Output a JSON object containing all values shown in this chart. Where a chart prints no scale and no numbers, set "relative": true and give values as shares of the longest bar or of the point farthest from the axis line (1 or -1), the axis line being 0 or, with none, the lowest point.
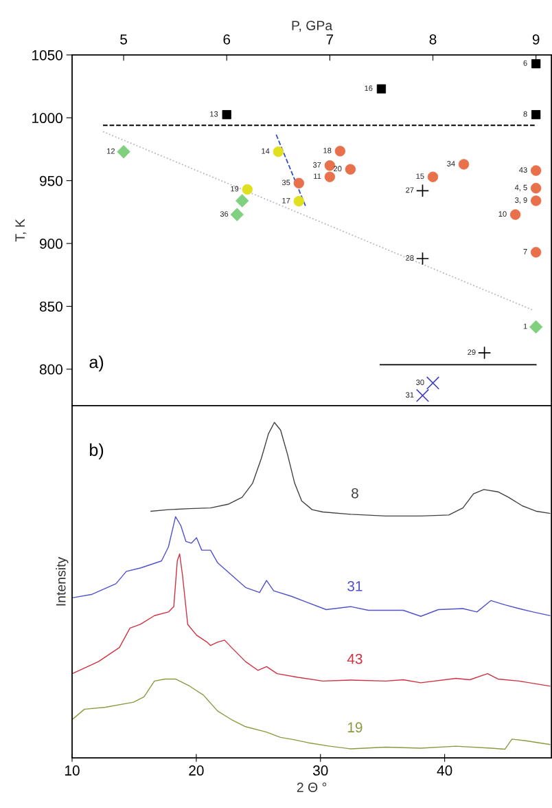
{
  "chart_data": [
    {
      "type": "scatter",
      "xlabel": "P, GPa",
      "ylabel": "T, K",
      "xlim": [
        4.5,
        9.15
      ],
      "ylim": [
        771,
        1050
      ],
      "xticks": [
        5,
        6,
        7,
        8,
        9
      ],
      "yticks": [
        800,
        850,
        900,
        950,
        1000,
        1050
      ],
      "grid": false,
      "legend": false,
      "series": [
        {
          "type": "line",
          "color": "#000000",
          "line_style": "dashed",
          "marker": "none",
          "x": [
            4.8,
            9.0
          ],
          "values": [
            994,
            994
          ]
        },
        {
          "type": "line",
          "color": "#b0b8c4",
          "line_style": "dotted",
          "marker": "none",
          "x": [
            4.8,
            8.97
          ],
          "values": [
            989,
            847
          ]
        },
        {
          "type": "line",
          "color": "#3050c0",
          "line_style": "dashed",
          "marker": "none",
          "x": [
            6.48,
            6.77
          ],
          "values": [
            986.6,
            928.7
          ]
        },
        {
          "type": "line",
          "color": "#000000",
          "line_style": "solid",
          "marker": "none",
          "x": [
            7.49,
            9.0
          ],
          "values": [
            803.5,
            803.5
          ]
        },
        {
          "type": "scatter",
          "color": "#000000",
          "marker": "square",
          "x": [
            6.0,
            7.5,
            9.0,
            9.0
          ],
          "values": [
            1002.5,
            1023,
            1043,
            1002.5
          ]
        },
        {
          "type": "scatter",
          "color": "#e8704a",
          "marker": "circle",
          "x": [
            7.1,
            7.0,
            7.0,
            7.2,
            6.7,
            8.0,
            8.3,
            9.0,
            9.0,
            9.0,
            8.8,
            9.0
          ],
          "values": [
            973.5,
            962,
            953,
            959,
            948,
            953,
            963,
            958,
            944,
            934,
            923,
            893
          ]
        },
        {
          "type": "scatter",
          "color": "#e0e020",
          "marker": "circle",
          "x": [
            6.5,
            6.2,
            6.7
          ],
          "values": [
            973,
            943,
            933.6
          ]
        },
        {
          "type": "scatter",
          "color": "#80d080",
          "marker": "diamond",
          "x": [
            5.0,
            6.1,
            6.15,
            9.0
          ],
          "values": [
            973,
            923,
            934,
            833.6
          ]
        },
        {
          "type": "scatter",
          "color": "#000000",
          "marker": "cross",
          "x": [
            7.9,
            7.9,
            8.5
          ],
          "values": [
            942,
            888,
            813
          ]
        },
        {
          "type": "scatter",
          "color": "#4040c0",
          "marker": "x",
          "x": [
            7.9,
            8.0
          ],
          "values": [
            779,
            789
          ]
        }
      ],
      "annotations": [
        "a)",
        {
          "text": "13",
          "x": 6.0,
          "y": 1002.5
        },
        {
          "text": "16",
          "x": 7.5,
          "y": 1023
        },
        {
          "text": "6",
          "x": 9.0,
          "y": 1043
        },
        {
          "text": "8",
          "x": 9.0,
          "y": 1002.5
        },
        {
          "text": "18",
          "x": 7.1,
          "y": 973.5
        },
        {
          "text": "37",
          "x": 7.0,
          "y": 962
        },
        {
          "text": "11",
          "x": 7.0,
          "y": 953
        },
        {
          "text": "20",
          "x": 7.2,
          "y": 959
        },
        {
          "text": "35",
          "x": 6.7,
          "y": 948
        },
        {
          "text": "15",
          "x": 8.0,
          "y": 953
        },
        {
          "text": "34",
          "x": 8.3,
          "y": 963
        },
        {
          "text": "43",
          "x": 9.0,
          "y": 958
        },
        {
          "text": "4, 5",
          "x": 9.0,
          "y": 944
        },
        {
          "text": "3, 9",
          "x": 9.0,
          "y": 934
        },
        {
          "text": "10",
          "x": 8.8,
          "y": 923
        },
        {
          "text": "7",
          "x": 9.0,
          "y": 893
        },
        {
          "text": "14",
          "x": 6.5,
          "y": 973
        },
        {
          "text": "19",
          "x": 6.2,
          "y": 943
        },
        {
          "text": "17",
          "x": 6.7,
          "y": 933.6
        },
        {
          "text": "12",
          "x": 5.0,
          "y": 973
        },
        {
          "text": "36",
          "x": 6.1,
          "y": 923
        },
        {
          "text": "1",
          "x": 9.0,
          "y": 833.6
        },
        {
          "text": "27",
          "x": 7.9,
          "y": 942
        },
        {
          "text": "28",
          "x": 7.9,
          "y": 888
        },
        {
          "text": "29",
          "x": 8.5,
          "y": 813
        },
        {
          "text": "31",
          "x": 7.9,
          "y": 779
        },
        {
          "text": "30",
          "x": 8.0,
          "y": 789
        }
      ]
    },
    {
      "type": "line",
      "xlabel": "2 Θ °",
      "ylabel": "Intensity",
      "xlim": [
        10,
        48.6
      ],
      "xticks": [
        10,
        20,
        30,
        40
      ],
      "relative": true,
      "tick_labels": "x",
      "grid": false,
      "legend": false,
      "annotations": [
        "b)"
      ],
      "series": [
        {
          "name": "8",
          "color": "#404040",
          "x": [
            16.35,
            17.76,
            19.46,
            21.15,
            22.56,
            23.69,
            24.54,
            25.24,
            25.81,
            26.29,
            26.79,
            27.36,
            27.92,
            28.49,
            29.33,
            30.18,
            32.44,
            35.26,
            38.08,
            40.34,
            41.47,
            42.32,
            43.16,
            44.29,
            45.14,
            46.27,
            47.4,
            48.47
          ],
          "values": [
            0.735,
            0.74,
            0.743,
            0.745,
            0.756,
            0.777,
            0.819,
            0.893,
            0.966,
            1.0,
            0.977,
            0.903,
            0.819,
            0.766,
            0.74,
            0.733,
            0.726,
            0.721,
            0.721,
            0.724,
            0.745,
            0.787,
            0.8,
            0.793,
            0.777,
            0.751,
            0.735,
            0.729
          ]
        },
        {
          "name": "31",
          "color": "#5050d0",
          "x": [
            10,
            11.55,
            13.53,
            14.37,
            15.5,
            17.2,
            17.76,
            18.33,
            18.75,
            19.17,
            19.6,
            20.02,
            20.44,
            21.15,
            21.71,
            22.84,
            23.97,
            25.1,
            25.66,
            26.23,
            27.64,
            28.77,
            30.46,
            32.44,
            33.85,
            35.26,
            36.67,
            38.08,
            39.49,
            41.47,
            42.6,
            43.73,
            44.86,
            45.99,
            47.11,
            48.47
          ],
          "values": [
            0.477,
            0.487,
            0.519,
            0.556,
            0.566,
            0.587,
            0.629,
            0.719,
            0.693,
            0.645,
            0.64,
            0.656,
            0.619,
            0.619,
            0.582,
            0.545,
            0.508,
            0.493,
            0.529,
            0.498,
            0.482,
            0.466,
            0.442,
            0.451,
            0.44,
            0.44,
            0.44,
            0.422,
            0.442,
            0.445,
            0.435,
            0.469,
            0.456,
            0.445,
            0.435,
            0.424
          ]
        },
        {
          "name": "43",
          "color": "#d03040",
          "x": [
            10,
            12.12,
            13.81,
            14.66,
            15.5,
            16.63,
            17.76,
            18.19,
            18.47,
            18.66,
            18.89,
            19.31,
            20.02,
            20.87,
            21.15,
            21.71,
            22.28,
            22.84,
            23.97,
            24.96,
            25.66,
            26.51,
            28.2,
            30.18,
            32.44,
            35.26,
            36.67,
            38.08,
            40.91,
            42.03,
            43.45,
            44.29,
            45.99,
            48.47
          ],
          "values": [
            0.251,
            0.287,
            0.329,
            0.387,
            0.398,
            0.424,
            0.435,
            0.451,
            0.587,
            0.608,
            0.545,
            0.398,
            0.366,
            0.345,
            0.335,
            0.345,
            0.351,
            0.329,
            0.287,
            0.261,
            0.272,
            0.251,
            0.24,
            0.229,
            0.232,
            0.229,
            0.233,
            0.224,
            0.237,
            0.233,
            0.251,
            0.235,
            0.229,
            0.214
          ]
        },
        {
          "name": "19",
          "color": "#8a9a40",
          "x": [
            10,
            10.99,
            12.68,
            14.94,
            15.79,
            16.63,
            17.48,
            18.33,
            19.46,
            20.58,
            21.71,
            22.84,
            23.97,
            25.66,
            26.79,
            27.64,
            29.05,
            30.75,
            32.44,
            35.26,
            38.08,
            40.91,
            43.73,
            44.86,
            45.42,
            46.55,
            48.47
          ],
          "values": [
            0.114,
            0.145,
            0.151,
            0.166,
            0.182,
            0.229,
            0.235,
            0.235,
            0.214,
            0.187,
            0.14,
            0.114,
            0.093,
            0.077,
            0.061,
            0.056,
            0.045,
            0.035,
            0.027,
            0.032,
            0.029,
            0.035,
            0.029,
            0.026,
            0.056,
            0.051,
            0.04
          ]
        }
      ]
    }
  ]
}
